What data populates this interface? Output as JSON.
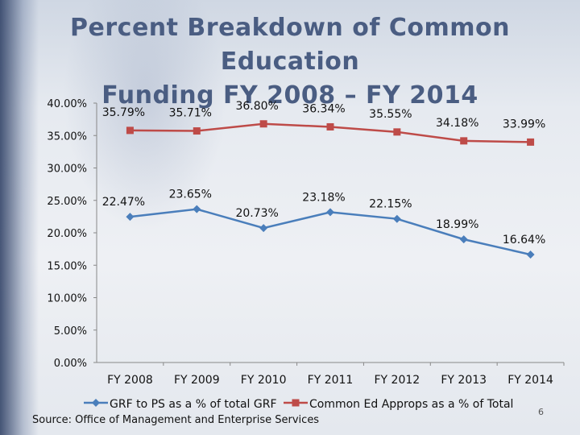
{
  "slide": {
    "title_line1": "Percent Breakdown of Common Education",
    "title_line2": "Funding FY 2008 – FY 2014",
    "source": "Source: Office of Management and Enterprise Services",
    "page_number": "6"
  },
  "chart_data": {
    "type": "line",
    "title": "Percent Breakdown of Common Education Funding FY 2008 – FY 2014",
    "categories": [
      "FY 2008",
      "FY 2009",
      "FY 2010",
      "FY 2011",
      "FY 2012",
      "FY 2013",
      "FY 2014"
    ],
    "ylim": [
      0,
      40
    ],
    "yticks": [
      0,
      5,
      10,
      15,
      20,
      25,
      30,
      35,
      40
    ],
    "ytick_labels": [
      "0.00%",
      "5.00%",
      "10.00%",
      "15.00%",
      "20.00%",
      "25.00%",
      "30.00%",
      "35.00%",
      "40.00%"
    ],
    "legend_position": "bottom",
    "series": [
      {
        "name": "GRF to PS as a % of total GRF",
        "marker": "diamond",
        "color": "#4a7ebb",
        "values": [
          22.47,
          23.65,
          20.73,
          23.18,
          22.15,
          18.99,
          16.64
        ],
        "labels": [
          "22.47%",
          "23.65%",
          "20.73%",
          "23.18%",
          "22.15%",
          "18.99%",
          "16.64%"
        ]
      },
      {
        "name": "Common Ed Approps as a % of Total",
        "marker": "square",
        "color": "#be4b48",
        "values": [
          35.79,
          35.71,
          36.8,
          36.34,
          35.55,
          34.18,
          33.99
        ],
        "labels": [
          "35.79%",
          "35.71%",
          "36.80%",
          "36.34%",
          "35.55%",
          "34.18%",
          "33.99%"
        ]
      }
    ]
  }
}
